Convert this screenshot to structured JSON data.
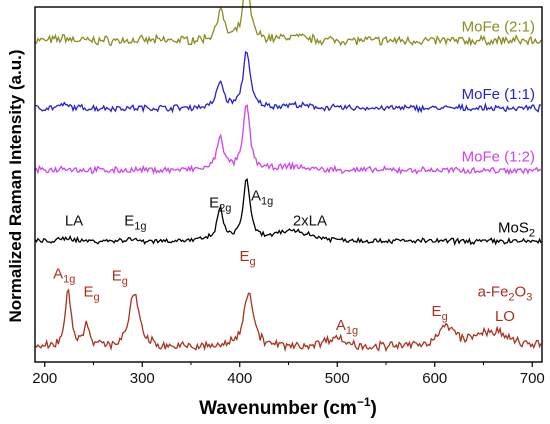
{
  "chart_data": {
    "type": "line",
    "xlabel_main": "Wavenumber (cm",
    "xlabel_sup": "−1",
    "xlabel_end": ")",
    "ylabel": "Normalized Raman Intensity (a.u.)",
    "xlim": [
      190,
      710
    ],
    "x_ticks": [
      200,
      300,
      400,
      500,
      600,
      700
    ],
    "grid": false,
    "legend": "labels placed at the right end of each trace",
    "series": [
      {
        "name": "MoFe (2:1)",
        "color": "#8b8b22",
        "baseline": 0.905,
        "noise": 0.01,
        "peaks": [
          [
            220,
            0.008,
            6
          ],
          [
            380,
            0.09,
            4
          ],
          [
            407,
            0.175,
            4
          ],
          [
            455,
            0.01,
            15
          ]
        ]
      },
      {
        "name": "MoFe (1:1)",
        "color": "#2323cc",
        "baseline": 0.715,
        "noise": 0.007,
        "peaks": [
          [
            220,
            0.008,
            6
          ],
          [
            380,
            0.075,
            4
          ],
          [
            407,
            0.165,
            4
          ],
          [
            455,
            0.008,
            15
          ]
        ]
      },
      {
        "name": "MoFe (1:2)",
        "color": "#cc44ee",
        "baseline": 0.54,
        "noise": 0.007,
        "peaks": [
          [
            220,
            0.008,
            6
          ],
          [
            380,
            0.095,
            4
          ],
          [
            407,
            0.185,
            4
          ],
          [
            455,
            0.01,
            15
          ]
        ]
      },
      {
        "name": "MoS2",
        "name_display": "MoS",
        "name_sub": "2",
        "color": "#000000",
        "baseline": 0.34,
        "noise": 0.006,
        "peaks": [
          [
            225,
            0.01,
            6
          ],
          [
            286,
            0.007,
            5
          ],
          [
            380,
            0.085,
            4
          ],
          [
            407,
            0.175,
            4
          ],
          [
            455,
            0.03,
            20
          ]
        ]
      },
      {
        "name": "a-Fe2O3",
        "name_display": "a-Fe",
        "name_sub": "2",
        "name_end": "O",
        "name_sub2": "3",
        "color": "#a83220",
        "baseline": 0.04,
        "noise": 0.01,
        "peaks": [
          [
            224,
            0.165,
            3.5
          ],
          [
            243,
            0.065,
            3.5
          ],
          [
            292,
            0.155,
            6
          ],
          [
            409,
            0.16,
            6
          ],
          [
            497,
            0.028,
            12
          ],
          [
            612,
            0.055,
            10
          ],
          [
            658,
            0.045,
            20
          ]
        ]
      }
    ],
    "annotations": [
      {
        "x": 230,
        "yb": 0.385,
        "color": "#111111",
        "parts": [
          [
            "LA",
            ""
          ]
        ]
      },
      {
        "x": 293,
        "yb": 0.385,
        "color": "#111111",
        "parts": [
          [
            "E",
            ""
          ],
          [
            "1g",
            "sub"
          ]
        ]
      },
      {
        "x": 380,
        "yb": 0.435,
        "color": "#111111",
        "parts": [
          [
            "E",
            ""
          ],
          [
            "2g",
            "sub"
          ]
        ]
      },
      {
        "x": 423,
        "yb": 0.455,
        "color": "#111111",
        "parts": [
          [
            "A",
            ""
          ],
          [
            "1g",
            "sub"
          ]
        ]
      },
      {
        "x": 472,
        "yb": 0.385,
        "color": "#111111",
        "parts": [
          [
            "2xLA",
            ""
          ]
        ]
      },
      {
        "x": 220,
        "yb": 0.235,
        "color": "#a83220",
        "parts": [
          [
            "A",
            ""
          ],
          [
            "1g",
            "sub"
          ]
        ]
      },
      {
        "x": 248,
        "yb": 0.185,
        "color": "#a83220",
        "parts": [
          [
            "E",
            ""
          ],
          [
            "g",
            "sub"
          ]
        ]
      },
      {
        "x": 277,
        "yb": 0.23,
        "color": "#a83220",
        "parts": [
          [
            "E",
            ""
          ],
          [
            "g",
            "sub"
          ]
        ]
      },
      {
        "x": 408,
        "yb": 0.285,
        "color": "#a83220",
        "parts": [
          [
            "E",
            ""
          ],
          [
            "g",
            "sub"
          ]
        ]
      },
      {
        "x": 510,
        "yb": 0.09,
        "color": "#a83220",
        "parts": [
          [
            "A",
            ""
          ],
          [
            "1g",
            "sub"
          ]
        ]
      },
      {
        "x": 605,
        "yb": 0.13,
        "color": "#a83220",
        "parts": [
          [
            "E",
            ""
          ],
          [
            "g",
            "sub"
          ]
        ]
      },
      {
        "x": 672,
        "yb": 0.185,
        "color": "#a83220",
        "parts": [
          [
            "a-Fe",
            ""
          ],
          [
            "2",
            "sub"
          ],
          [
            "O",
            ""
          ],
          [
            "3",
            "sub"
          ]
        ]
      },
      {
        "x": 672,
        "yb": 0.115,
        "color": "#a83220",
        "parts": [
          [
            "LO",
            ""
          ]
        ]
      }
    ]
  }
}
